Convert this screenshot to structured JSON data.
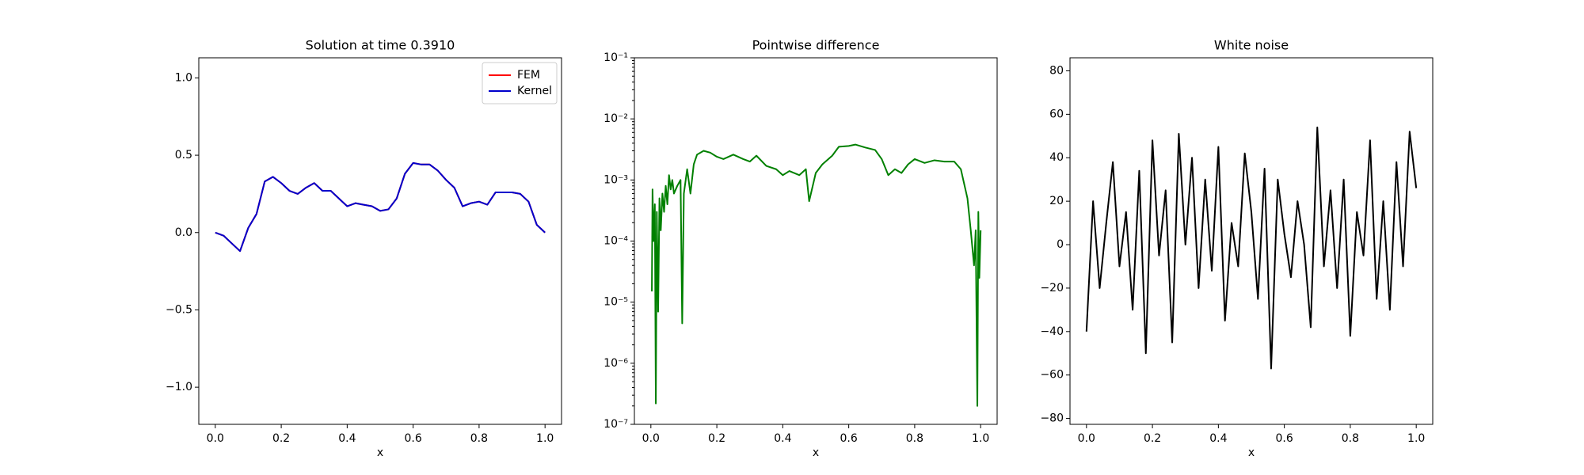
{
  "chart_data": [
    {
      "type": "line",
      "title": "Solution at time 0.3910",
      "xlabel": "x",
      "legend": "upper right",
      "xlim": [
        -0.05,
        1.05
      ],
      "ylim": [
        -1.24,
        1.13
      ],
      "xticks": [
        {
          "value": 0,
          "label": "0.0"
        },
        0.2,
        0.4,
        0.6,
        0.8,
        {
          "value": 1,
          "label": "1.0"
        }
      ],
      "yticks": [
        {
          "value": -1,
          "label": "−1.0"
        },
        {
          "value": -0.5,
          "label": "−0.5"
        },
        {
          "value": 0,
          "label": "0.0"
        },
        0.5,
        {
          "value": 1,
          "label": "1.0"
        }
      ],
      "x": [
        0,
        0.025,
        0.05,
        0.075,
        0.1,
        0.125,
        0.15,
        0.175,
        0.2,
        0.225,
        0.25,
        0.275,
        0.3,
        0.325,
        0.35,
        0.375,
        0.4,
        0.425,
        0.45,
        0.475,
        0.5,
        0.525,
        0.55,
        0.575,
        0.6,
        0.625,
        0.65,
        0.675,
        0.7,
        0.725,
        0.75,
        0.775,
        0.8,
        0.825,
        0.85,
        0.875,
        0.9,
        0.925,
        0.95,
        0.975,
        1
      ],
      "series": [
        {
          "name": "FEM",
          "color": "#ff0000",
          "values": [
            0,
            -0.02,
            -0.07,
            -0.12,
            0.03,
            0.12,
            0.33,
            0.36,
            0.32,
            0.27,
            0.25,
            0.29,
            0.32,
            0.27,
            0.27,
            0.22,
            0.17,
            0.19,
            0.18,
            0.17,
            0.14,
            0.15,
            0.22,
            0.38,
            0.45,
            0.44,
            0.44,
            0.4,
            0.34,
            0.29,
            0.17,
            0.19,
            0.2,
            0.18,
            0.26,
            0.26,
            0.26,
            0.25,
            0.2,
            0.05,
            0
          ]
        },
        {
          "name": "Kernel",
          "color": "#0000cc",
          "values": [
            0,
            -0.02,
            -0.07,
            -0.12,
            0.03,
            0.12,
            0.33,
            0.36,
            0.32,
            0.27,
            0.25,
            0.29,
            0.32,
            0.27,
            0.27,
            0.22,
            0.17,
            0.19,
            0.18,
            0.17,
            0.14,
            0.15,
            0.22,
            0.38,
            0.45,
            0.44,
            0.44,
            0.4,
            0.34,
            0.29,
            0.17,
            0.19,
            0.2,
            0.18,
            0.26,
            0.26,
            0.26,
            0.25,
            0.2,
            0.05,
            0
          ]
        }
      ]
    },
    {
      "type": "line",
      "title": "Pointwise difference",
      "xlabel": "x",
      "log_y": true,
      "xlim": [
        -0.05,
        1.05
      ],
      "ylim": [
        1e-07,
        0.1
      ],
      "xticks": [
        {
          "value": 0,
          "label": "0.0"
        },
        0.2,
        0.4,
        0.6,
        0.8,
        {
          "value": 1,
          "label": "1.0"
        }
      ],
      "yticks": [
        {
          "value": 1e-07,
          "label": "10⁻⁷"
        },
        {
          "value": 1e-06,
          "label": "10⁻⁶"
        },
        {
          "value": 1e-05,
          "label": "10⁻⁵"
        },
        {
          "value": 0.0001,
          "label": "10⁻⁴"
        },
        {
          "value": 0.001,
          "label": "10⁻³"
        },
        {
          "value": 0.01,
          "label": "10⁻²"
        },
        {
          "value": 0.1,
          "label": "10⁻¹"
        }
      ],
      "x": [
        0.003,
        0.005,
        0.008,
        0.012,
        0.015,
        0.018,
        0.022,
        0.026,
        0.03,
        0.035,
        0.04,
        0.045,
        0.05,
        0.055,
        0.06,
        0.065,
        0.07,
        0.08,
        0.09,
        0.095,
        0.1,
        0.11,
        0.12,
        0.13,
        0.14,
        0.16,
        0.18,
        0.2,
        0.22,
        0.25,
        0.28,
        0.3,
        0.32,
        0.35,
        0.38,
        0.4,
        0.42,
        0.45,
        0.47,
        0.48,
        0.5,
        0.52,
        0.55,
        0.57,
        0.6,
        0.62,
        0.65,
        0.68,
        0.7,
        0.72,
        0.74,
        0.76,
        0.78,
        0.8,
        0.83,
        0.86,
        0.89,
        0.92,
        0.94,
        0.96,
        0.97,
        0.98,
        0.985,
        0.99,
        0.993,
        0.996,
        1
      ],
      "series": [
        {
          "color": "#008000",
          "values": [
            1.5e-05,
            0.0007,
            0.0001,
            0.0004,
            2.2e-07,
            0.0003,
            7e-06,
            0.0005,
            0.00015,
            0.0006,
            0.0003,
            0.0008,
            0.0004,
            0.0012,
            0.0007,
            0.001,
            0.0006,
            0.0008,
            0.001,
            4.5e-06,
            0.0006,
            0.0015,
            0.0006,
            0.0018,
            0.0026,
            0.003,
            0.0028,
            0.0024,
            0.0022,
            0.0026,
            0.0022,
            0.002,
            0.0025,
            0.0017,
            0.0015,
            0.0012,
            0.0014,
            0.0012,
            0.0015,
            0.00045,
            0.0013,
            0.0018,
            0.0025,
            0.0035,
            0.0036,
            0.0038,
            0.0034,
            0.0031,
            0.0022,
            0.0012,
            0.0015,
            0.0013,
            0.0018,
            0.0022,
            0.0019,
            0.0021,
            0.002,
            0.002,
            0.0015,
            0.0005,
            0.00015,
            4e-05,
            0.00015,
            2e-07,
            0.0003,
            2.5e-05,
            0.00015
          ]
        }
      ]
    },
    {
      "type": "line",
      "title": "White noise",
      "xlabel": "x",
      "xlim": [
        -0.05,
        1.05
      ],
      "ylim": [
        -82.7,
        86
      ],
      "xticks": [
        {
          "value": 0,
          "label": "0.0"
        },
        0.2,
        0.4,
        0.6,
        0.8,
        {
          "value": 1,
          "label": "1.0"
        }
      ],
      "yticks": [
        {
          "value": -80,
          "label": "−80"
        },
        {
          "value": -60,
          "label": "−60"
        },
        {
          "value": -40,
          "label": "−40"
        },
        {
          "value": -20,
          "label": "−20"
        },
        0,
        20,
        40,
        60,
        80
      ],
      "x": [
        0,
        0.02,
        0.04,
        0.06,
        0.08,
        0.1,
        0.12,
        0.14,
        0.16,
        0.18,
        0.2,
        0.22,
        0.24,
        0.26,
        0.28,
        0.3,
        0.32,
        0.34,
        0.36,
        0.38,
        0.4,
        0.42,
        0.44,
        0.46,
        0.48,
        0.5,
        0.52,
        0.54,
        0.56,
        0.58,
        0.6,
        0.62,
        0.64,
        0.66,
        0.68,
        0.7,
        0.72,
        0.74,
        0.76,
        0.78,
        0.8,
        0.82,
        0.84,
        0.86,
        0.88,
        0.9,
        0.92,
        0.94,
        0.96,
        0.98,
        1
      ],
      "series": [
        {
          "color": "#000000",
          "values": [
            -40,
            20,
            -20,
            10,
            38,
            -10,
            15,
            -30,
            34,
            -50,
            48,
            -5,
            25,
            -45,
            51,
            0,
            40,
            -20,
            30,
            -12,
            45,
            -35,
            10,
            -10,
            42,
            15,
            -25,
            35,
            -57,
            30,
            5,
            -15,
            20,
            0,
            -38,
            54,
            -10,
            25,
            -20,
            30,
            -42,
            15,
            -5,
            48,
            -25,
            20,
            -30,
            38,
            -10,
            52,
            26
          ]
        }
      ]
    }
  ]
}
